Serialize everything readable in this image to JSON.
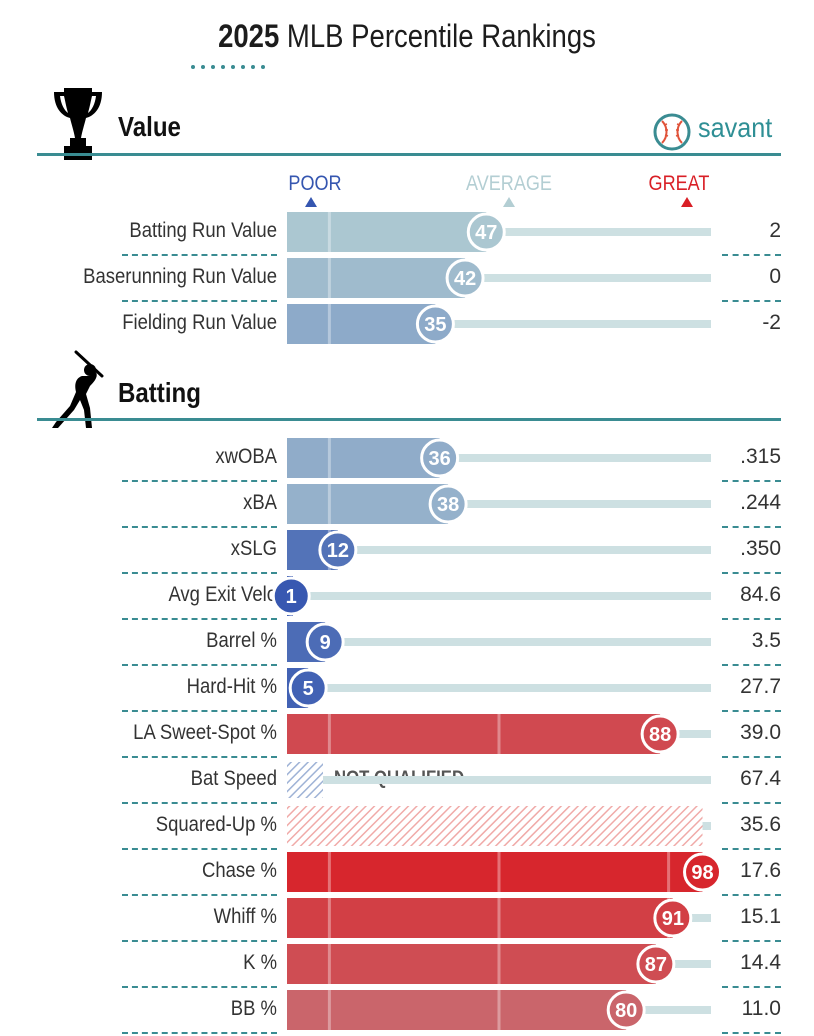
{
  "header": {
    "title_year": "2025",
    "title_rest": "MLB Percentile Rankings",
    "brand": "savant",
    "brand_icon": "baseball-icon"
  },
  "scale": {
    "poor_label": "POOR",
    "average_label": "AVERAGE",
    "great_label": "GREAT"
  },
  "colors": {
    "accent": "#3a8c92",
    "poor": "#3556b0",
    "average": "#b3ced3",
    "great": "#d91f26",
    "track": "#cde0e2"
  },
  "chart_data": {
    "type": "bar",
    "title": "2025 MLB Percentile Rankings",
    "xlim": [
      0,
      100
    ],
    "sections": [
      {
        "name": "Value",
        "icon": "trophy-icon",
        "metrics": [
          {
            "label": "Batting Run Value",
            "percentile": 47,
            "value": "2",
            "status": "ranked"
          },
          {
            "label": "Baserunning Run Value",
            "percentile": 42,
            "value": "0",
            "status": "ranked"
          },
          {
            "label": "Fielding Run Value",
            "percentile": 35,
            "value": "-2",
            "status": "ranked"
          }
        ]
      },
      {
        "name": "Batting",
        "icon": "batter-icon",
        "metrics": [
          {
            "label": "xwOBA",
            "percentile": 36,
            "value": ".315",
            "status": "ranked"
          },
          {
            "label": "xBA",
            "percentile": 38,
            "value": ".244",
            "status": "ranked"
          },
          {
            "label": "xSLG",
            "percentile": 12,
            "value": ".350",
            "status": "ranked"
          },
          {
            "label": "Avg Exit Velo",
            "percentile": 1,
            "value": "84.6",
            "status": "ranked"
          },
          {
            "label": "Barrel %",
            "percentile": 9,
            "value": "3.5",
            "status": "ranked"
          },
          {
            "label": "Hard-Hit %",
            "percentile": 5,
            "value": "27.7",
            "status": "ranked"
          },
          {
            "label": "LA Sweet-Spot %",
            "percentile": 88,
            "value": "39.0",
            "status": "ranked"
          },
          {
            "label": "Bat Speed",
            "percentile": null,
            "value": "67.4",
            "status": "not_qualified",
            "status_label": "NOT QUALIFIED"
          },
          {
            "label": "Squared-Up %",
            "percentile": null,
            "value": "35.6",
            "status": "unranked_high"
          },
          {
            "label": "Chase %",
            "percentile": 98,
            "value": "17.6",
            "status": "ranked"
          },
          {
            "label": "Whiff %",
            "percentile": 91,
            "value": "15.1",
            "status": "ranked"
          },
          {
            "label": "K %",
            "percentile": 87,
            "value": "14.4",
            "status": "ranked"
          },
          {
            "label": "BB %",
            "percentile": 80,
            "value": "11.0",
            "status": "ranked"
          }
        ]
      }
    ]
  }
}
